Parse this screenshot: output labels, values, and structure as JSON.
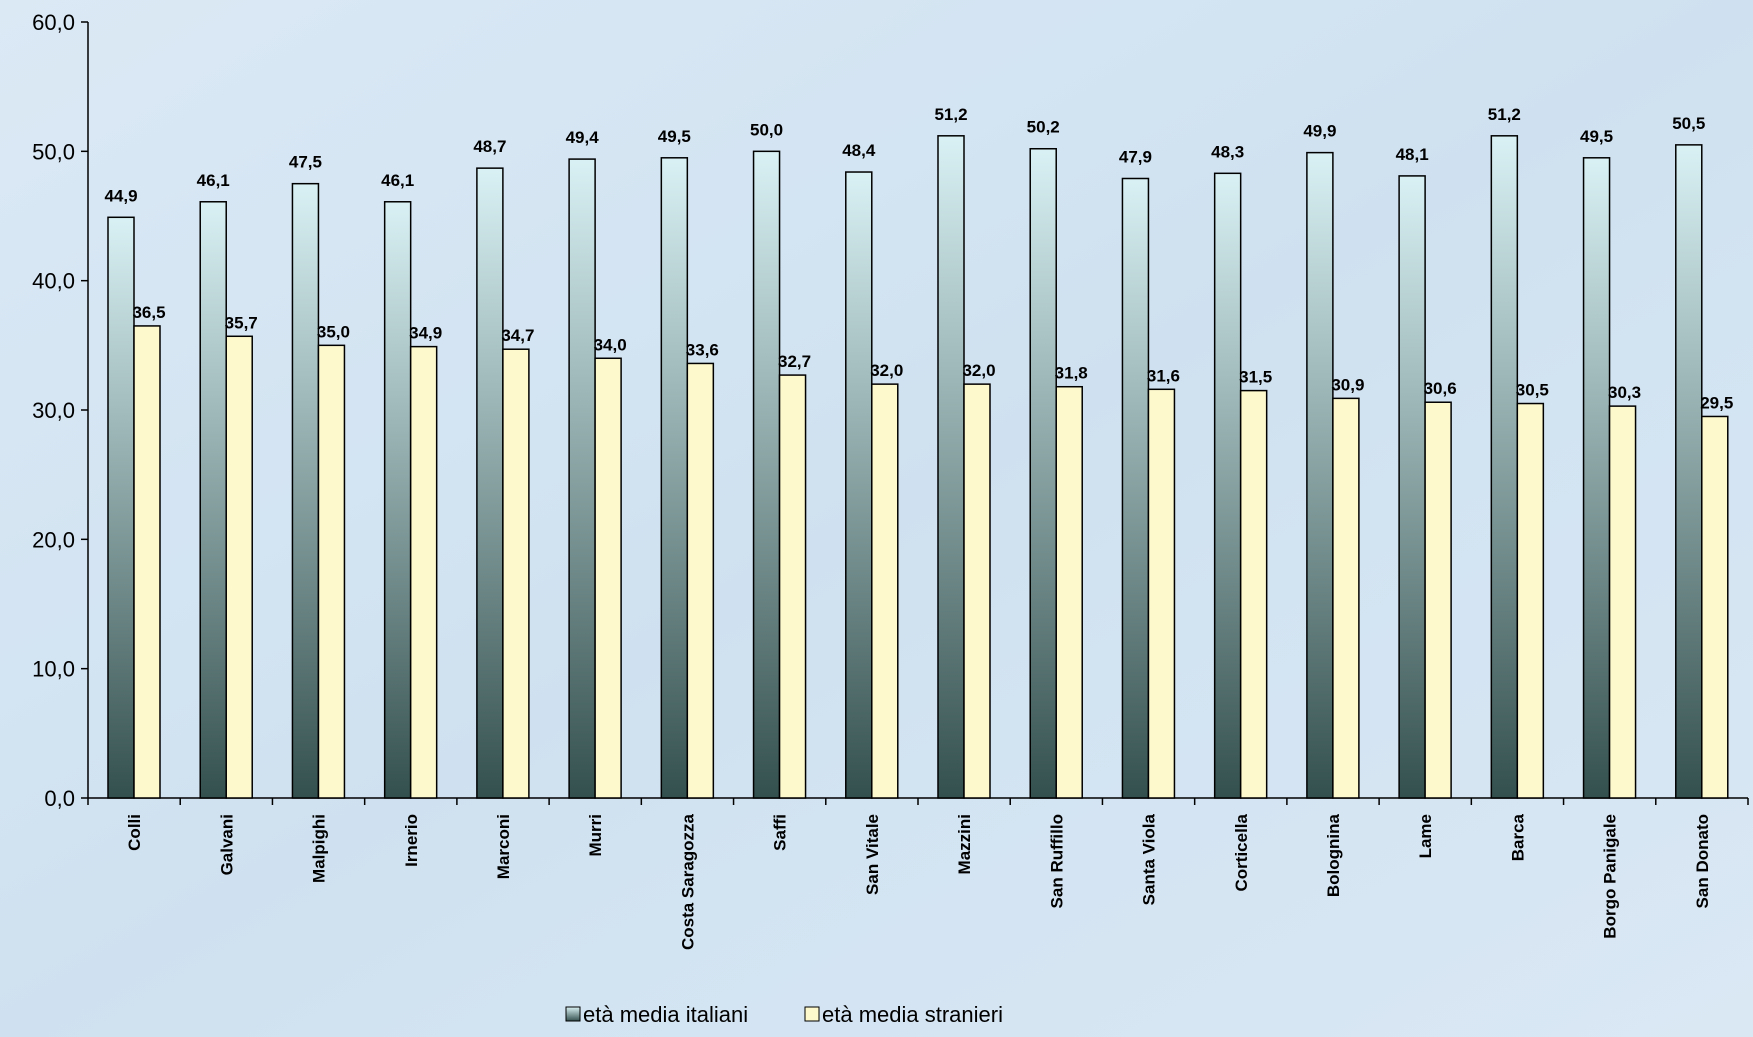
{
  "chart_data": {
    "type": "bar",
    "categories": [
      "Colli",
      "Galvani",
      "Malpighi",
      "Irnerio",
      "Marconi",
      "Murri",
      "Costa Saragozza",
      "Saffi",
      "San Vitale",
      "Mazzini",
      "San Ruffillo",
      "Santa Viola",
      "Corticella",
      "Bolognina",
      "Lame",
      "Barca",
      "Borgo Panigale",
      "San Donato"
    ],
    "series": [
      {
        "name": "età media italiani",
        "values": [
          44.9,
          46.1,
          47.5,
          46.1,
          48.7,
          49.4,
          49.5,
          50.0,
          48.4,
          51.2,
          50.2,
          47.9,
          48.3,
          49.9,
          48.1,
          51.2,
          49.5,
          50.5
        ],
        "labels": [
          "44,9",
          "46,1",
          "47,5",
          "46,1",
          "48,7",
          "49,4",
          "49,5",
          "50,0",
          "48,4",
          "51,2",
          "50,2",
          "47,9",
          "48,3",
          "49,9",
          "48,1",
          "51,2",
          "49,5",
          "50,5"
        ],
        "color_top": "#d9f1f4",
        "color_bottom": "#34504e"
      },
      {
        "name": "età media stranieri",
        "values": [
          36.5,
          35.7,
          35.0,
          34.9,
          34.7,
          34.0,
          33.6,
          32.7,
          32.0,
          32.0,
          31.8,
          31.6,
          31.5,
          30.9,
          30.6,
          30.5,
          30.3,
          29.5
        ],
        "labels": [
          "36,5",
          "35,7",
          "35,0",
          "34,9",
          "34,7",
          "34,0",
          "33,6",
          "32,7",
          "32,0",
          "32,0",
          "31,8",
          "31,6",
          "31,5",
          "30,9",
          "30,6",
          "30,5",
          "30,3",
          "29,5"
        ],
        "color": "#fef9cc"
      }
    ],
    "yticks": [
      "0,0",
      "10,0",
      "20,0",
      "30,0",
      "40,0",
      "50,0",
      "60,0"
    ],
    "ylim": [
      0,
      60
    ],
    "legend_position": "bottom",
    "grid": false
  }
}
